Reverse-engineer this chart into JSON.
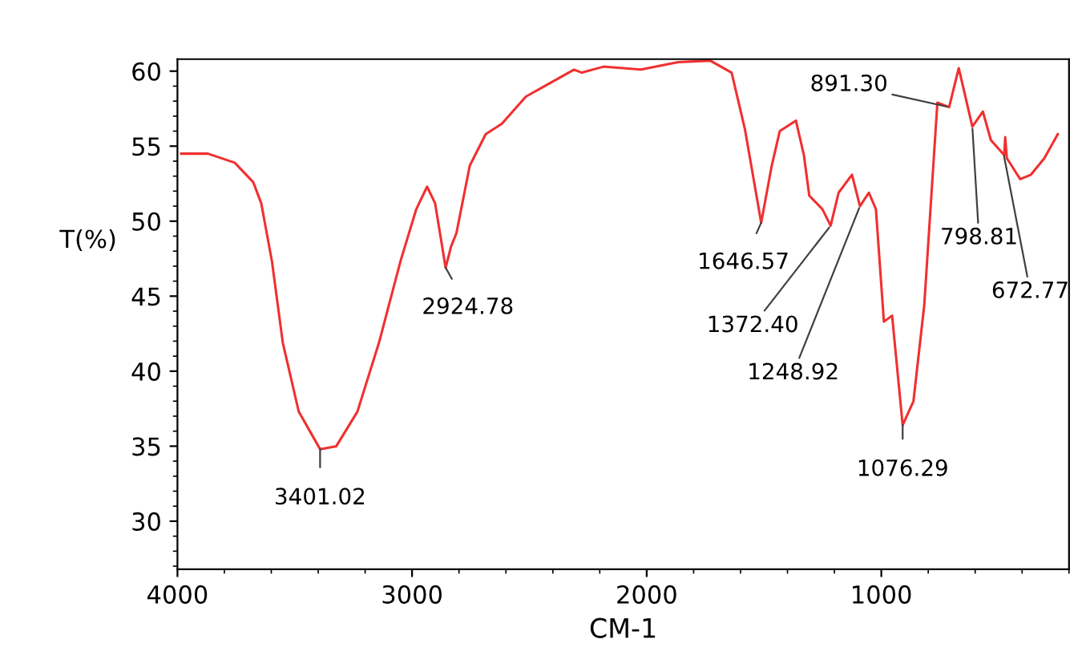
{
  "chart_data": {
    "type": "line",
    "xlabel": "CM-1",
    "ylabel": "T(%)",
    "xlim": [
      4000,
      200
    ],
    "xticks": [
      4000,
      3000,
      2000,
      1000
    ],
    "ylim": [
      26.8,
      60.8
    ],
    "yticks": [
      30,
      35,
      40,
      45,
      50,
      55,
      60
    ],
    "grid": false,
    "legend": false,
    "marker": "none",
    "line_style": "solid",
    "series": [
      {
        "color": "#f03030",
        "x": [
          3984,
          3870,
          3756,
          3677,
          3643,
          3597,
          3551,
          3483,
          3392,
          3323,
          3233,
          3141,
          3050,
          2982,
          2936,
          2902,
          2857,
          2834,
          2811,
          2754,
          2686,
          2617,
          2515,
          2435,
          2310,
          2276,
          2184,
          2025,
          1866,
          1729,
          1638,
          1581,
          1512,
          1467,
          1433,
          1364,
          1330,
          1307,
          1251,
          1216,
          1182,
          1125,
          1091,
          1053,
          1023,
          989,
          954,
          909,
          863,
          817,
          761,
          711,
          670,
          612,
          567,
          533,
          476,
          472,
          465,
          408,
          362,
          305,
          248
        ],
        "values": [
          54.5,
          54.5,
          53.9,
          52.6,
          51.2,
          47.3,
          41.9,
          37.3,
          34.8,
          35.0,
          37.3,
          41.9,
          47.3,
          50.8,
          52.3,
          51.2,
          46.9,
          48.3,
          49.2,
          53.7,
          55.8,
          56.5,
          58.3,
          59.0,
          60.1,
          59.9,
          60.3,
          60.1,
          60.6,
          60.7,
          59.9,
          56.1,
          49.9,
          53.7,
          56.0,
          56.7,
          54.4,
          51.7,
          50.8,
          49.7,
          51.9,
          53.1,
          51.0,
          51.9,
          50.8,
          43.3,
          43.7,
          36.4,
          38.0,
          44.4,
          57.9,
          57.6,
          60.2,
          56.3,
          57.3,
          55.4,
          54.4,
          55.6,
          54.2,
          52.8,
          53.1,
          54.2,
          55.8
        ]
      }
    ],
    "annotations": [
      {
        "text": "3401.02",
        "x": 3392,
        "y": 34.8
      },
      {
        "text": "2924.78",
        "x": 2857,
        "y": 46.9
      },
      {
        "text": "1646.57",
        "x": 1512,
        "y": 49.9
      },
      {
        "text": "1372.40",
        "x": 1216,
        "y": 49.7
      },
      {
        "text": "1248.92",
        "x": 1091,
        "y": 51.0
      },
      {
        "text": "1076.29",
        "x": 909,
        "y": 36.4
      },
      {
        "text": "891.30",
        "x": 711,
        "y": 57.6
      },
      {
        "text": "798.81",
        "x": 612,
        "y": 56.3
      },
      {
        "text": "672.77",
        "x": 479,
        "y": 54.5
      }
    ]
  }
}
